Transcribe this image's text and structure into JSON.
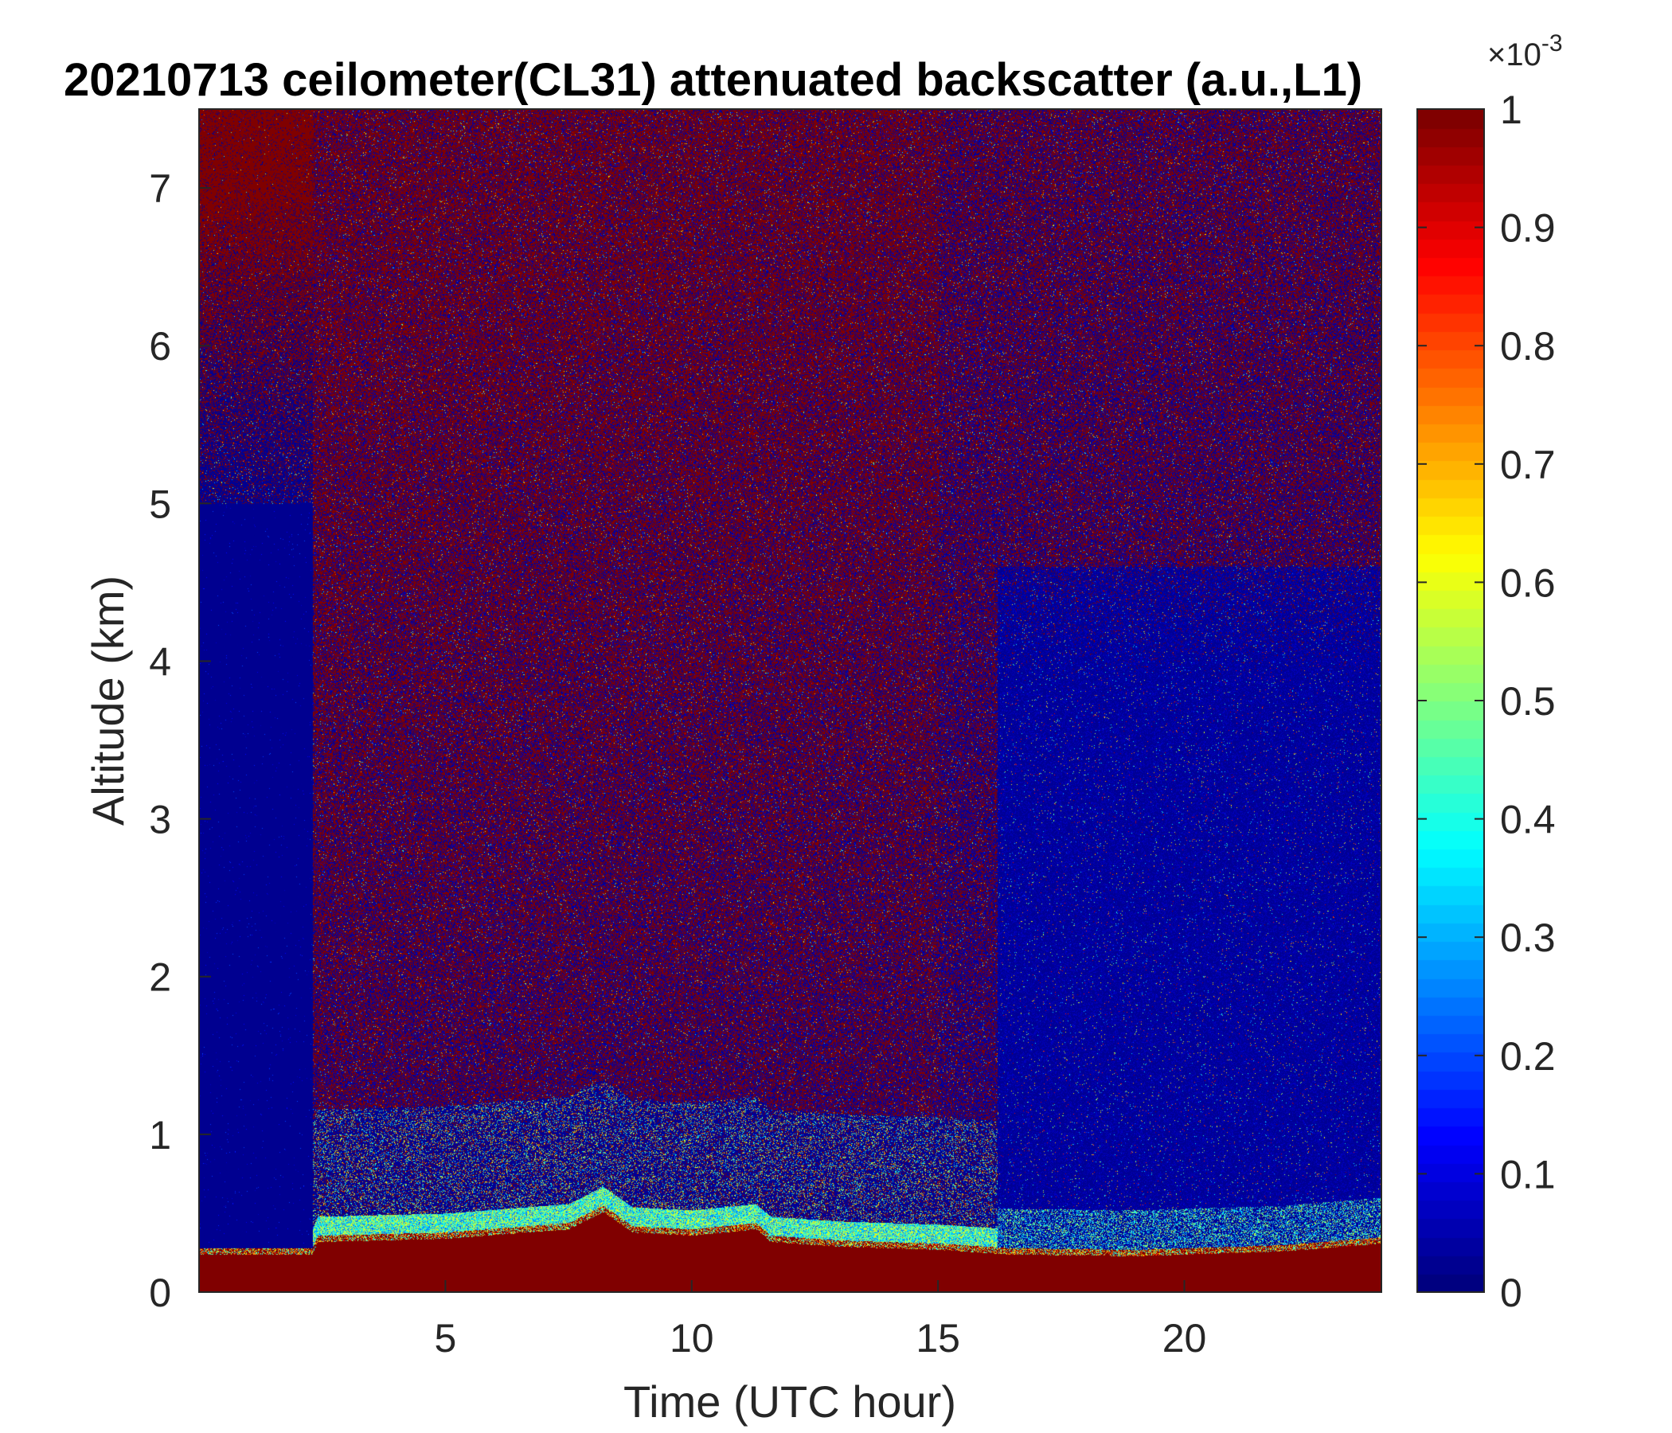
{
  "chart_data": {
    "type": "heatmap",
    "title": "20210713 ceilometer(CL31) attenuated backscatter (a.u.,L1)",
    "xlabel": "Time (UTC hour)",
    "ylabel": "Altitude (km)",
    "xlim": [
      0,
      24
    ],
    "ylim": [
      0,
      7.5
    ],
    "xticks": [
      5,
      10,
      15,
      20
    ],
    "yticks": [
      0,
      1,
      2,
      3,
      4,
      5,
      6,
      7
    ],
    "colorbar": {
      "colormap": "jet",
      "clim": [
        0,
        1
      ],
      "ticks": [
        0,
        0.1,
        0.2,
        0.3,
        0.4,
        0.5,
        0.6,
        0.7,
        0.8,
        0.9,
        1
      ],
      "exponent_label": "×10",
      "exponent_power": "-3"
    },
    "regions": [
      {
        "x": [
          0,
          2.3
        ],
        "y": [
          0.32,
          5.2
        ],
        "level": 0.0,
        "noise": 0.0
      },
      {
        "x": [
          0,
          2.3
        ],
        "y": [
          5.2,
          7.5
        ],
        "level": 0.85,
        "noise": 0.5
      },
      {
        "x": [
          2.3,
          24
        ],
        "y": [
          0.6,
          7.5
        ],
        "level": 0.55,
        "noise": 0.9
      },
      {
        "x": [
          16.2,
          24
        ],
        "y": [
          0.3,
          4.5
        ],
        "level": 0.05,
        "noise": 0.2
      },
      {
        "x": [
          0,
          2.3
        ],
        "y": [
          0,
          0.28
        ],
        "level": 1.0,
        "noise": 0.05
      },
      {
        "x": [
          2.3,
          24
        ],
        "y": [
          0,
          0.3
        ],
        "level": 1.0,
        "noise": 0.05
      },
      {
        "x": [
          7.5,
          8.8
        ],
        "y": [
          0,
          0.55
        ],
        "level": 1.0,
        "noise": 0.0
      }
    ],
    "boundary_layer_top_km": {
      "x": [
        0,
        2.3,
        2.4,
        5,
        7.5,
        8.2,
        8.8,
        10,
        11.3,
        11.6,
        13,
        15,
        16.5,
        19,
        22,
        24
      ],
      "y": [
        0.28,
        0.28,
        0.36,
        0.38,
        0.44,
        0.55,
        0.42,
        0.4,
        0.44,
        0.36,
        0.33,
        0.31,
        0.28,
        0.27,
        0.3,
        0.35
      ]
    }
  }
}
